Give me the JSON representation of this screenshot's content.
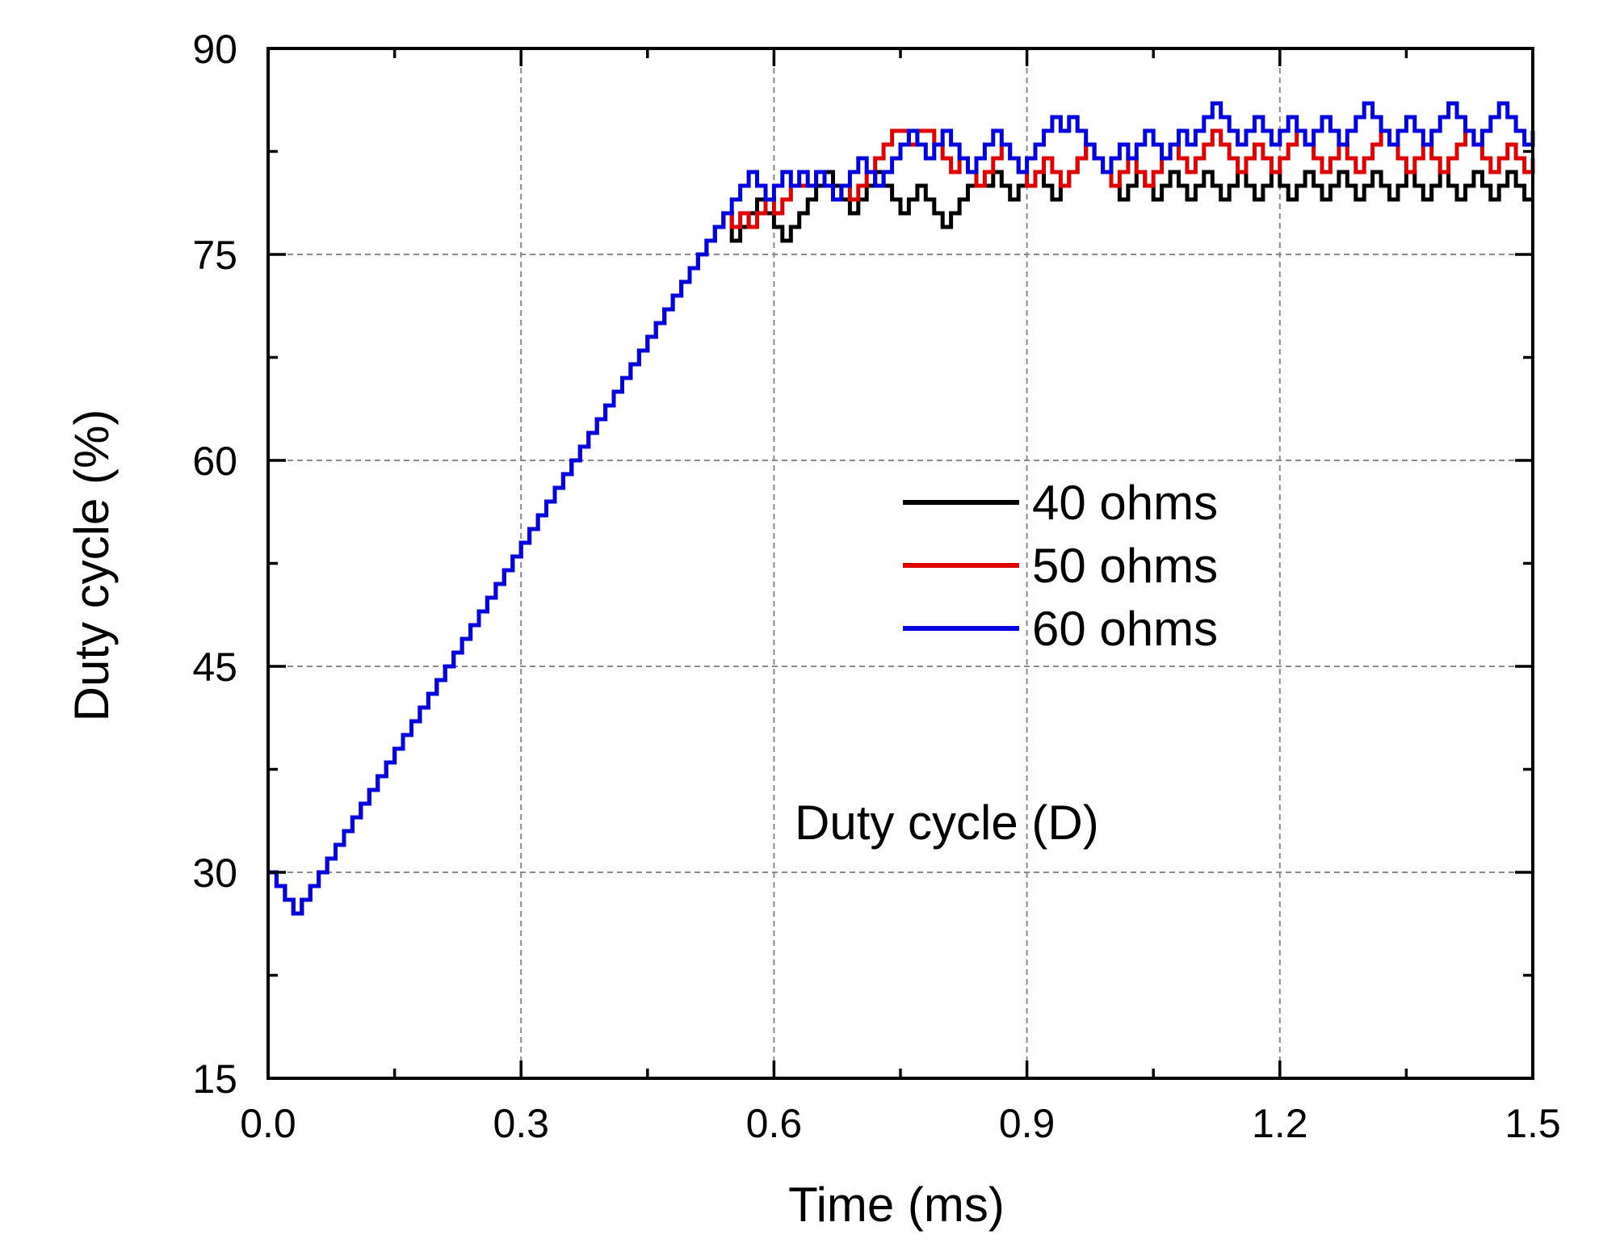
{
  "chart_data": {
    "type": "line",
    "title": "",
    "xlabel": "Time (ms)",
    "ylabel": "Duty cycle (%)",
    "xlim": [
      0.0,
      1.5
    ],
    "ylim": [
      15,
      90
    ],
    "xticks": [
      0.0,
      0.3,
      0.6,
      0.9,
      1.2,
      1.5
    ],
    "xtick_labels": [
      "0.0",
      "0.3",
      "0.6",
      "0.9",
      "1.2",
      "1.5"
    ],
    "yticks": [
      15,
      30,
      45,
      60,
      75,
      90
    ],
    "ytick_labels": [
      "15",
      "30",
      "45",
      "60",
      "75",
      "90"
    ],
    "grid": true,
    "step_style": "post",
    "annotation": "Duty cycle (D)",
    "legend": {
      "position": "center-right",
      "entries": [
        "40 ohms",
        "50 ohms",
        "60 ohms"
      ]
    },
    "ramp": {
      "x": [
        0.0,
        0.01,
        0.02,
        0.03,
        0.04,
        0.05,
        0.06,
        0.07,
        0.08,
        0.09,
        0.1,
        0.11,
        0.12,
        0.13,
        0.14,
        0.15,
        0.16,
        0.17,
        0.18,
        0.19,
        0.2,
        0.21,
        0.22,
        0.23,
        0.24,
        0.25,
        0.26,
        0.27,
        0.28,
        0.29,
        0.3,
        0.31,
        0.32,
        0.33,
        0.34,
        0.35,
        0.36,
        0.37,
        0.38,
        0.39,
        0.4,
        0.41,
        0.42,
        0.43,
        0.44,
        0.45,
        0.46,
        0.47,
        0.48,
        0.49,
        0.5,
        0.51,
        0.52,
        0.53,
        0.54
      ],
      "y": [
        30,
        29,
        28,
        27,
        28,
        29,
        30,
        31,
        32,
        33,
        34,
        35,
        36,
        37,
        38,
        39,
        40,
        41,
        42,
        43,
        44,
        45,
        46,
        47,
        48,
        49,
        50,
        51,
        52,
        53,
        54,
        55,
        56,
        57,
        58,
        59,
        60,
        61,
        62,
        63,
        64,
        65,
        66,
        67,
        68,
        69,
        70,
        71,
        72,
        73,
        74,
        75,
        76,
        77,
        78
      ]
    },
    "series": [
      {
        "name": "40 ohms",
        "color": "#000000",
        "x": [
          0.55,
          0.56,
          0.57,
          0.58,
          0.59,
          0.6,
          0.61,
          0.62,
          0.63,
          0.64,
          0.65,
          0.66,
          0.67,
          0.68,
          0.69,
          0.7,
          0.71,
          0.72,
          0.73,
          0.74,
          0.75,
          0.76,
          0.77,
          0.78,
          0.79,
          0.8,
          0.81,
          0.82,
          0.83,
          0.84,
          0.85,
          0.86,
          0.87,
          0.88,
          0.89,
          0.9,
          0.91,
          0.92,
          0.93,
          0.94,
          0.95,
          0.96,
          0.97,
          0.98,
          0.99,
          1.0,
          1.01,
          1.02,
          1.03,
          1.04,
          1.05,
          1.06,
          1.07,
          1.08,
          1.09,
          1.1,
          1.11,
          1.12,
          1.13,
          1.14,
          1.15,
          1.16,
          1.17,
          1.18,
          1.19,
          1.2,
          1.21,
          1.22,
          1.23,
          1.24,
          1.25,
          1.26,
          1.27,
          1.28,
          1.29,
          1.3,
          1.31,
          1.32,
          1.33,
          1.34,
          1.35,
          1.36,
          1.37,
          1.38,
          1.39,
          1.4,
          1.41,
          1.42,
          1.43,
          1.44,
          1.45,
          1.46,
          1.47,
          1.48,
          1.49,
          1.5
        ],
        "values": [
          76,
          77,
          78,
          79,
          78,
          77,
          76,
          77,
          78,
          79,
          80,
          81,
          80,
          79,
          78,
          79,
          80,
          81,
          80,
          79,
          78,
          79,
          80,
          79,
          78,
          77,
          78,
          79,
          80,
          80,
          80,
          81,
          80,
          79,
          80,
          80,
          81,
          80,
          79,
          80,
          81,
          82,
          83,
          82,
          81,
          80,
          79,
          80,
          81,
          80,
          79,
          80,
          81,
          80,
          79,
          80,
          81,
          80,
          79,
          80,
          81,
          80,
          79,
          80,
          81,
          80,
          79,
          80,
          81,
          80,
          79,
          80,
          81,
          80,
          79,
          80,
          81,
          80,
          79,
          80,
          81,
          80,
          79,
          80,
          81,
          80,
          79,
          80,
          81,
          80,
          79,
          80,
          81,
          80,
          79,
          79
        ]
      },
      {
        "name": "50 ohms",
        "color": "#e00000",
        "x": [
          0.55,
          0.56,
          0.57,
          0.58,
          0.59,
          0.6,
          0.61,
          0.62,
          0.63,
          0.64,
          0.65,
          0.66,
          0.67,
          0.68,
          0.69,
          0.7,
          0.71,
          0.72,
          0.73,
          0.74,
          0.75,
          0.76,
          0.77,
          0.78,
          0.79,
          0.8,
          0.81,
          0.82,
          0.83,
          0.84,
          0.85,
          0.86,
          0.87,
          0.88,
          0.89,
          0.9,
          0.91,
          0.92,
          0.93,
          0.94,
          0.95,
          0.96,
          0.97,
          0.98,
          0.99,
          1.0,
          1.01,
          1.02,
          1.03,
          1.04,
          1.05,
          1.06,
          1.07,
          1.08,
          1.09,
          1.1,
          1.11,
          1.12,
          1.13,
          1.14,
          1.15,
          1.16,
          1.17,
          1.18,
          1.19,
          1.2,
          1.21,
          1.22,
          1.23,
          1.24,
          1.25,
          1.26,
          1.27,
          1.28,
          1.29,
          1.3,
          1.31,
          1.32,
          1.33,
          1.34,
          1.35,
          1.36,
          1.37,
          1.38,
          1.39,
          1.4,
          1.41,
          1.42,
          1.43,
          1.44,
          1.45,
          1.46,
          1.47,
          1.48,
          1.49,
          1.5
        ],
        "values": [
          77,
          78,
          77,
          78,
          79,
          78,
          79,
          80,
          80,
          80,
          81,
          80,
          79,
          80,
          79,
          80,
          81,
          82,
          83,
          84,
          84,
          83,
          84,
          84,
          83,
          82,
          81,
          82,
          81,
          80,
          81,
          82,
          83,
          82,
          81,
          80,
          81,
          82,
          81,
          80,
          81,
          82,
          83,
          82,
          81,
          80,
          81,
          82,
          81,
          80,
          81,
          82,
          83,
          82,
          81,
          82,
          83,
          84,
          83,
          82,
          81,
          82,
          83,
          82,
          81,
          82,
          83,
          84,
          83,
          82,
          81,
          82,
          83,
          82,
          81,
          82,
          83,
          84,
          83,
          82,
          81,
          82,
          83,
          82,
          81,
          82,
          83,
          84,
          83,
          82,
          81,
          82,
          83,
          82,
          81,
          82
        ]
      },
      {
        "name": "60 ohms",
        "color": "#0000e0",
        "x": [
          0.55,
          0.56,
          0.57,
          0.58,
          0.59,
          0.6,
          0.61,
          0.62,
          0.63,
          0.64,
          0.65,
          0.66,
          0.67,
          0.68,
          0.69,
          0.7,
          0.71,
          0.72,
          0.73,
          0.74,
          0.75,
          0.76,
          0.77,
          0.78,
          0.79,
          0.8,
          0.81,
          0.82,
          0.83,
          0.84,
          0.85,
          0.86,
          0.87,
          0.88,
          0.89,
          0.9,
          0.91,
          0.92,
          0.93,
          0.94,
          0.95,
          0.96,
          0.97,
          0.98,
          0.99,
          1.0,
          1.01,
          1.02,
          1.03,
          1.04,
          1.05,
          1.06,
          1.07,
          1.08,
          1.09,
          1.1,
          1.11,
          1.12,
          1.13,
          1.14,
          1.15,
          1.16,
          1.17,
          1.18,
          1.19,
          1.2,
          1.21,
          1.22,
          1.23,
          1.24,
          1.25,
          1.26,
          1.27,
          1.28,
          1.29,
          1.3,
          1.31,
          1.32,
          1.33,
          1.34,
          1.35,
          1.36,
          1.37,
          1.38,
          1.39,
          1.4,
          1.41,
          1.42,
          1.43,
          1.44,
          1.45,
          1.46,
          1.47,
          1.48,
          1.49,
          1.5
        ],
        "values": [
          79,
          80,
          81,
          80,
          79,
          80,
          81,
          80,
          81,
          80,
          81,
          80,
          79,
          80,
          81,
          82,
          81,
          80,
          81,
          82,
          83,
          84,
          83,
          82,
          83,
          84,
          83,
          82,
          81,
          82,
          83,
          84,
          83,
          82,
          81,
          82,
          83,
          84,
          85,
          84,
          85,
          84,
          83,
          82,
          81,
          82,
          83,
          82,
          83,
          84,
          83,
          82,
          83,
          84,
          83,
          84,
          85,
          86,
          85,
          84,
          83,
          84,
          85,
          84,
          83,
          84,
          85,
          84,
          83,
          84,
          85,
          84,
          83,
          84,
          85,
          86,
          85,
          84,
          83,
          84,
          85,
          84,
          83,
          84,
          85,
          86,
          85,
          84,
          83,
          84,
          85,
          86,
          85,
          84,
          83,
          84
        ]
      }
    ]
  }
}
